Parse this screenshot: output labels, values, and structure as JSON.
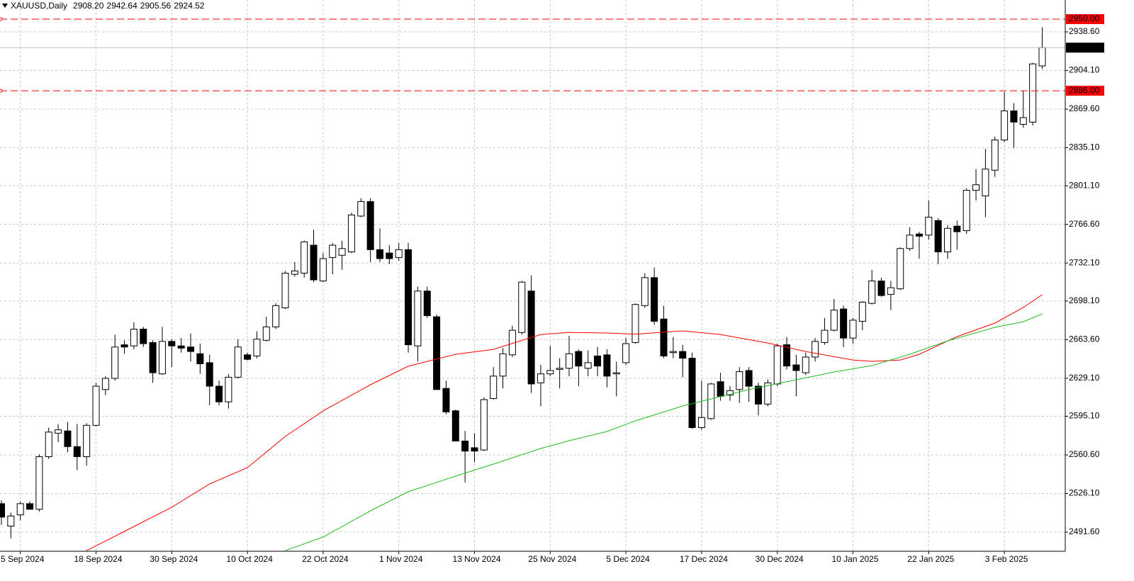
{
  "chart_data": {
    "type": "candlestick",
    "symbol": "XAUUSD,Daily",
    "last_bar_labels": [
      "2908.20",
      "2942.64",
      "2905.56",
      "2924.52"
    ],
    "categories": [
      null,
      null,
      "5 Sep 2024",
      null,
      null,
      null,
      null,
      null,
      null,
      null,
      "18 Sep 2024",
      null,
      null,
      null,
      null,
      null,
      null,
      null,
      "30 Sep 2024",
      null,
      null,
      null,
      null,
      null,
      null,
      null,
      "10 Oct 2024",
      null,
      null,
      null,
      null,
      null,
      null,
      null,
      "22 Oct 2024",
      null,
      null,
      null,
      null,
      null,
      null,
      null,
      "1 Nov 2024",
      null,
      null,
      null,
      null,
      null,
      null,
      null,
      "13 Nov 2024",
      null,
      null,
      null,
      null,
      null,
      null,
      null,
      "25 Nov 2024",
      null,
      null,
      null,
      null,
      null,
      null,
      null,
      "5 Dec 2024",
      null,
      null,
      null,
      null,
      null,
      null,
      null,
      "17 Dec 2024",
      null,
      null,
      null,
      null,
      null,
      null,
      null,
      "30 Dec 2024",
      null,
      null,
      null,
      null,
      null,
      null,
      null,
      "10 Jan 2025",
      null,
      null,
      null,
      null,
      null,
      null,
      null,
      "22 Jan 2025",
      null,
      null,
      null,
      null,
      null,
      null,
      null,
      "3 Feb 2025",
      null,
      null,
      null,
      null
    ],
    "open": [
      2517,
      2497,
      2507,
      2517,
      2512,
      2559,
      2580,
      2582,
      2568,
      2559,
      2587,
      2619,
      2629,
      2659,
      2658,
      2673,
      2661,
      2633,
      2662,
      2658,
      2657,
      2651,
      2643,
      2622,
      2608,
      2630,
      2650,
      2649,
      2663,
      2675,
      2692,
      2722,
      2723,
      2748,
      2716,
      2737,
      2739,
      2742,
      2774,
      2787,
      2744,
      2741,
      2737,
      2744,
      2658,
      2707,
      2684,
      2620,
      2600,
      2573,
      2567,
      2565,
      2611,
      2631,
      2650,
      2670,
      2707,
      2625,
      2633,
      2637,
      2638,
      2653,
      2638,
      2649,
      2650,
      2633,
      2643,
      2661,
      2694,
      2719,
      2682,
      2652,
      2653,
      2647,
      2585,
      2593,
      2626,
      2614,
      2619,
      2636,
      2622,
      2606,
      2624,
      2659,
      2641,
      2634,
      2648,
      2661,
      2672,
      2691,
      2665,
      2680,
      2696,
      2716,
      2704,
      2709,
      2745,
      2758,
      2757,
      2770,
      2742,
      2765,
      2761,
      2797,
      2792,
      2815,
      2842,
      2868,
      2856,
      2858,
      2908.2
    ],
    "high": [
      2520,
      2509,
      2519,
      2519,
      2561,
      2585,
      2588,
      2590,
      2588,
      2589,
      2625,
      2631,
      2668,
      2663,
      2679,
      2675,
      2663,
      2675,
      2664,
      2665,
      2669,
      2660,
      2650,
      2627,
      2633,
      2664,
      2652,
      2671,
      2684,
      2696,
      2725,
      2733,
      2752,
      2762,
      2741,
      2750,
      2752,
      2777,
      2790,
      2790,
      2763,
      2748,
      2750,
      2750,
      2711,
      2711,
      2686,
      2627,
      2601,
      2582,
      2580,
      2612,
      2639,
      2656,
      2676,
      2716,
      2721,
      2641,
      2658,
      2647,
      2667,
      2655,
      2654,
      2657,
      2655,
      2644,
      2665,
      2696,
      2723,
      2728,
      2694,
      2666,
      2659,
      2652,
      2627,
      2625,
      2634,
      2622,
      2639,
      2639,
      2625,
      2628,
      2660,
      2666,
      2650,
      2652,
      2665,
      2683,
      2700,
      2694,
      2683,
      2698,
      2726,
      2719,
      2716,
      2746,
      2764,
      2760,
      2788,
      2772,
      2766,
      2770,
      2799,
      2816,
      2834,
      2845,
      2885,
      2875,
      2886,
      2911,
      2942.64
    ],
    "low": [
      2498,
      2486,
      2502,
      2513,
      2510,
      2557,
      2572,
      2563,
      2547,
      2551,
      2586,
      2614,
      2627,
      2651,
      2655,
      2657,
      2625,
      2632,
      2639,
      2652,
      2644,
      2633,
      2605,
      2605,
      2602,
      2629,
      2645,
      2647,
      2662,
      2673,
      2691,
      2720,
      2719,
      2715,
      2715,
      2722,
      2726,
      2741,
      2773,
      2733,
      2733,
      2731,
      2734,
      2652,
      2644,
      2683,
      2619,
      2597,
      2573,
      2536,
      2554,
      2564,
      2610,
      2620,
      2648,
      2668,
      2616,
      2604,
      2631,
      2620,
      2631,
      2622,
      2631,
      2631,
      2621,
      2613,
      2641,
      2660,
      2692,
      2677,
      2647,
      2647,
      2630,
      2584,
      2583,
      2592,
      2609,
      2609,
      2607,
      2608,
      2596,
      2604,
      2622,
      2637,
      2613,
      2632,
      2644,
      2659,
      2671,
      2657,
      2660,
      2672,
      2695,
      2702,
      2690,
      2708,
      2743,
      2736,
      2753,
      2731,
      2736,
      2744,
      2758,
      2788,
      2773,
      2809,
      2840,
      2835,
      2853,
      2855,
      2905.56
    ],
    "close": [
      2505,
      2506,
      2517,
      2512,
      2559,
      2581,
      2583,
      2568,
      2559,
      2587,
      2622,
      2629,
      2657,
      2657,
      2673,
      2660,
      2634,
      2662,
      2658,
      2656,
      2653,
      2642,
      2622,
      2608,
      2630,
      2657,
      2646,
      2664,
      2675,
      2694,
      2723,
      2725,
      2751,
      2717,
      2736,
      2748,
      2745,
      2775,
      2787,
      2744,
      2736,
      2736,
      2744,
      2659,
      2707,
      2685,
      2619,
      2599,
      2573,
      2564,
      2564,
      2610,
      2631,
      2651,
      2672,
      2715,
      2624,
      2633,
      2636,
      2638,
      2651,
      2640,
      2643,
      2640,
      2631,
      2634,
      2660,
      2695,
      2719,
      2680,
      2649,
      2653,
      2647,
      2585,
      2594,
      2624,
      2613,
      2618,
      2635,
      2622,
      2606,
      2625,
      2658,
      2640,
      2636,
      2648,
      2662,
      2672,
      2690,
      2665,
      2681,
      2697,
      2716,
      2703,
      2710,
      2745,
      2757,
      2756,
      2773,
      2742,
      2763,
      2760,
      2797,
      2802,
      2816,
      2842,
      2868,
      2858,
      2862,
      2910,
      2924.52
    ],
    "up_color": "#ffffff",
    "down_color": "#000000",
    "outline_color": "#000000",
    "moving_averages": [
      {
        "color": "#ff0000",
        "x": [
          9,
          13,
          18,
          22,
          26,
          30,
          34,
          39,
          43,
          48,
          52,
          57,
          60,
          64,
          67,
          72,
          76,
          81,
          85,
          90,
          92,
          95,
          97,
          101,
          105,
          108,
          110
        ],
        "values": [
          2475,
          2492.2,
          2513.8,
          2534.6,
          2549.2,
          2577.1,
          2599.9,
          2623.3,
          2639.8,
          2650.5,
          2654.9,
          2668.2,
          2670.1,
          2669.5,
          2668.5,
          2671.4,
          2668.2,
          2660.6,
          2653,
          2645.4,
          2644.2,
          2645.4,
          2650.5,
          2666.3,
          2678.4,
          2692.3,
          2703.7
        ]
      },
      {
        "color": "#22bb22",
        "x": [
          30,
          34,
          39,
          43,
          48,
          52,
          57,
          60,
          64,
          67,
          72,
          75,
          79,
          84,
          88,
          92,
          96,
          100,
          105,
          108,
          110
        ],
        "values": [
          2475,
          2487.2,
          2510.6,
          2527.7,
          2541.6,
          2552.4,
          2566.3,
          2573.3,
          2581.5,
          2591,
          2604.3,
          2610.6,
          2618.9,
          2627.7,
          2634.7,
          2640.4,
          2650.5,
          2662.5,
          2674.6,
          2679.6,
          2686.6
        ]
      }
    ],
    "levels": [
      {
        "value": 2950,
        "label": "2950.00",
        "color": "#ff0000"
      },
      {
        "value": 2886,
        "label": "2886.00",
        "color": "#ff0000"
      }
    ],
    "last_price": {
      "value": 2924.52,
      "label": "2924.52",
      "color": "#000000"
    },
    "ylim": [
      2474.5,
      2967.1
    ],
    "yticks": [
      {
        "value": 2491.6,
        "label": "2491.60"
      },
      {
        "value": 2526.1,
        "label": "2526.10"
      },
      {
        "value": 2560.6,
        "label": "2560.60"
      },
      {
        "value": 2595.1,
        "label": "2595.10"
      },
      {
        "value": 2629.1,
        "label": "2629.10"
      },
      {
        "value": 2663.6,
        "label": "2663.60"
      },
      {
        "value": 2698.1,
        "label": "2698.10"
      },
      {
        "value": 2732.1,
        "label": "2732.10"
      },
      {
        "value": 2766.6,
        "label": "2766.60"
      },
      {
        "value": 2801.1,
        "label": "2801.10"
      },
      {
        "value": 2835.1,
        "label": "2835.10"
      },
      {
        "value": 2869.6,
        "label": "2869.60"
      },
      {
        "value": 2904.1,
        "label": "2904.10"
      },
      {
        "value": 2938.6,
        "label": "2938.60"
      }
    ],
    "grid": true
  }
}
